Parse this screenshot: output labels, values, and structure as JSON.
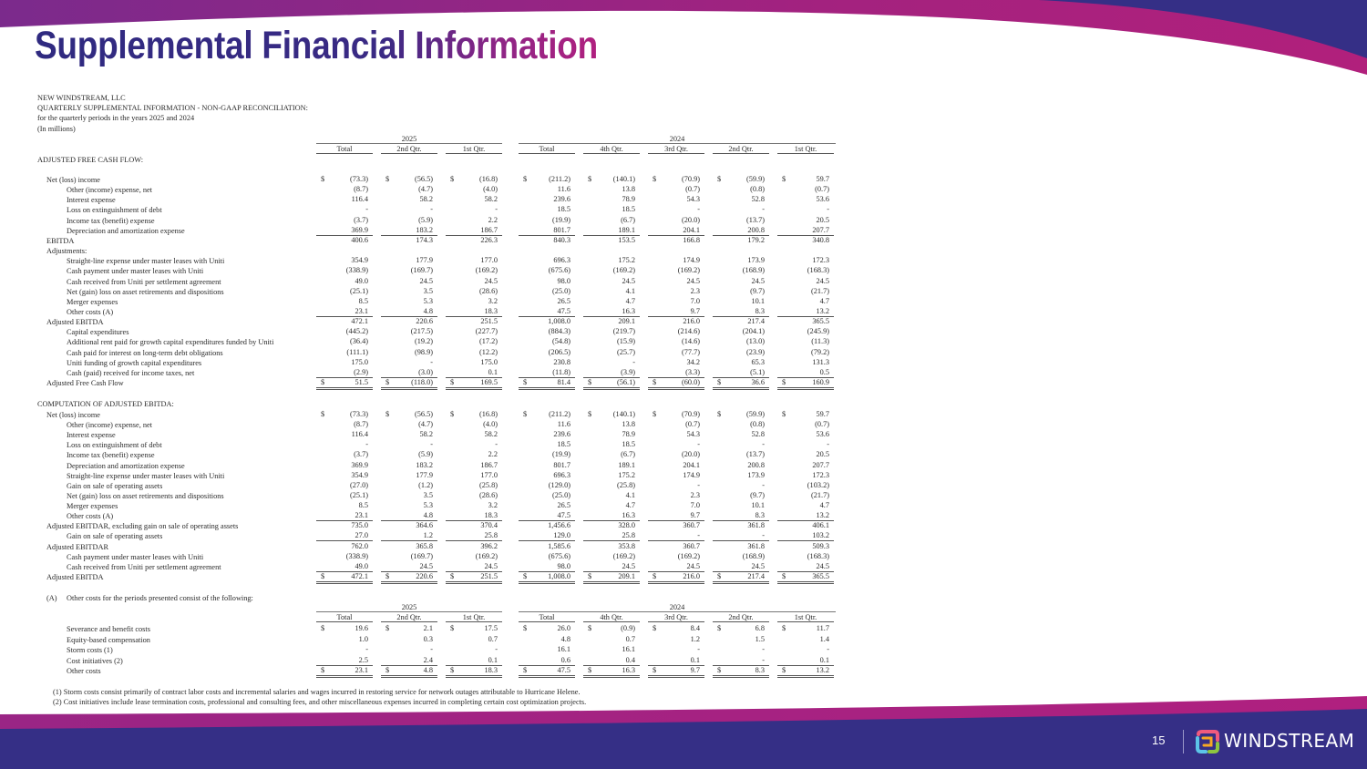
{
  "slide": {
    "title": "Supplemental Financial Information",
    "page_number": "15",
    "brand": "WINDSTREAM",
    "colors": {
      "navy": "#352f86",
      "magenta": "#a8217f",
      "purple": "#7b2a8c"
    }
  },
  "header": {
    "company": "NEW WINDSTREAM, LLC",
    "title": "QUARTERLY SUPPLEMENTAL INFORMATION - NON-GAAP RECONCILIATION:",
    "period": "for the quarterly periods in the years 2025 and 2024",
    "units": "(In millions)"
  },
  "columns": {
    "years": [
      {
        "label": "2025",
        "cols": [
          "Total",
          "2nd Qtr.",
          "1st Qtr."
        ]
      },
      {
        "label": "2024",
        "cols": [
          "Total",
          "4th Qtr.",
          "3rd Qtr.",
          "2nd Qtr.",
          "1st Qtr."
        ]
      }
    ],
    "dollar_sign": "$"
  },
  "sections": [
    {
      "title": "ADJUSTED FREE CASH FLOW:",
      "rows": [
        {
          "label": "Net (loss) income",
          "level": 1,
          "dollar": true,
          "values": [
            "(73.3)",
            "(56.5)",
            "(16.8)",
            "(211.2)",
            "(140.1)",
            "(70.9)",
            "(59.9)",
            "59.7"
          ]
        },
        {
          "label": "Other (income) expense, net",
          "level": 2,
          "values": [
            "(8.7)",
            "(4.7)",
            "(4.0)",
            "11.6",
            "13.8",
            "(0.7)",
            "(0.8)",
            "(0.7)"
          ]
        },
        {
          "label": "Interest expense",
          "level": 2,
          "values": [
            "116.4",
            "58.2",
            "58.2",
            "239.6",
            "78.9",
            "54.3",
            "52.8",
            "53.6"
          ]
        },
        {
          "label": "Loss on extinguishment of debt",
          "level": 2,
          "values": [
            "-",
            "-",
            "-",
            "18.5",
            "18.5",
            "-",
            "-",
            "-"
          ]
        },
        {
          "label": "Income tax (benefit) expense",
          "level": 2,
          "values": [
            "(3.7)",
            "(5.9)",
            "2.2",
            "(19.9)",
            "(6.7)",
            "(20.0)",
            "(13.7)",
            "20.5"
          ]
        },
        {
          "label": "Depreciation and amortization expense",
          "level": 2,
          "rule": "single",
          "values": [
            "369.9",
            "183.2",
            "186.7",
            "801.7",
            "189.1",
            "204.1",
            "200.8",
            "207.7"
          ]
        },
        {
          "label": "EBITDA",
          "level": 1,
          "values": [
            "400.6",
            "174.3",
            "226.3",
            "840.3",
            "153.5",
            "166.8",
            "179.2",
            "340.8"
          ]
        },
        {
          "label": "Adjustments:",
          "level": 1,
          "values": []
        },
        {
          "label": "Straight-line expense under master leases with Uniti",
          "level": 2,
          "values": [
            "354.9",
            "177.9",
            "177.0",
            "696.3",
            "175.2",
            "174.9",
            "173.9",
            "172.3"
          ]
        },
        {
          "label": "Cash payment under master leases with Uniti",
          "level": 2,
          "values": [
            "(338.9)",
            "(169.7)",
            "(169.2)",
            "(675.6)",
            "(169.2)",
            "(169.2)",
            "(168.9)",
            "(168.3)"
          ]
        },
        {
          "label": "Cash received from Uniti per settlement agreement",
          "level": 2,
          "values": [
            "49.0",
            "24.5",
            "24.5",
            "98.0",
            "24.5",
            "24.5",
            "24.5",
            "24.5"
          ]
        },
        {
          "label": "Net (gain) loss on asset retirements and dispositions",
          "level": 2,
          "values": [
            "(25.1)",
            "3.5",
            "(28.6)",
            "(25.0)",
            "4.1",
            "2.3",
            "(9.7)",
            "(21.7)"
          ]
        },
        {
          "label": "Merger expenses",
          "level": 2,
          "values": [
            "8.5",
            "5.3",
            "3.2",
            "26.5",
            "4.7",
            "7.0",
            "10.1",
            "4.7"
          ]
        },
        {
          "label": "Other costs (A)",
          "level": 2,
          "rule": "single",
          "values": [
            "23.1",
            "4.8",
            "18.3",
            "47.5",
            "16.3",
            "9.7",
            "8.3",
            "13.2"
          ]
        },
        {
          "label": "Adjusted EBITDA",
          "level": 1,
          "values": [
            "472.1",
            "220.6",
            "251.5",
            "1,008.0",
            "209.1",
            "216.0",
            "217.4",
            "365.5"
          ]
        },
        {
          "label": "Capital expenditures",
          "level": 2,
          "values": [
            "(445.2)",
            "(217.5)",
            "(227.7)",
            "(884.3)",
            "(219.7)",
            "(214.6)",
            "(204.1)",
            "(245.9)"
          ]
        },
        {
          "label": "Additional rent paid for growth capital expenditures funded by Uniti",
          "level": 2,
          "values": [
            "(36.4)",
            "(19.2)",
            "(17.2)",
            "(54.8)",
            "(15.9)",
            "(14.6)",
            "(13.0)",
            "(11.3)"
          ]
        },
        {
          "label": "Cash paid for interest on long-term debt obligations",
          "level": 2,
          "values": [
            "(111.1)",
            "(98.9)",
            "(12.2)",
            "(206.5)",
            "(25.7)",
            "(77.7)",
            "(23.9)",
            "(79.2)"
          ]
        },
        {
          "label": "Uniti funding of growth capital expenditures",
          "level": 2,
          "values": [
            "175.0",
            "-",
            "175.0",
            "230.8",
            "-",
            "34.2",
            "65.3",
            "131.3"
          ]
        },
        {
          "label": "Cash (paid) received for income taxes, net",
          "level": 2,
          "rule": "single",
          "values": [
            "(2.9)",
            "(3.0)",
            "0.1",
            "(11.8)",
            "(3.9)",
            "(3.3)",
            "(5.1)",
            "0.5"
          ]
        },
        {
          "label": "Adjusted Free Cash Flow",
          "level": 1,
          "dollar": true,
          "rule": "double",
          "values": [
            "51.5",
            "(118.0)",
            "169.5",
            "81.4",
            "(56.1)",
            "(60.0)",
            "36.6",
            "160.9"
          ]
        }
      ]
    },
    {
      "title": "COMPUTATION OF ADJUSTED EBITDA:",
      "rows": [
        {
          "label": "Net (loss) income",
          "level": 1,
          "dollar": true,
          "values": [
            "(73.3)",
            "(56.5)",
            "(16.8)",
            "(211.2)",
            "(140.1)",
            "(70.9)",
            "(59.9)",
            "59.7"
          ]
        },
        {
          "label": "Other (income) expense, net",
          "level": 2,
          "values": [
            "(8.7)",
            "(4.7)",
            "(4.0)",
            "11.6",
            "13.8",
            "(0.7)",
            "(0.8)",
            "(0.7)"
          ]
        },
        {
          "label": "Interest expense",
          "level": 2,
          "values": [
            "116.4",
            "58.2",
            "58.2",
            "239.6",
            "78.9",
            "54.3",
            "52.8",
            "53.6"
          ]
        },
        {
          "label": "Loss on extinguishment of debt",
          "level": 2,
          "values": [
            "-",
            "-",
            "-",
            "18.5",
            "18.5",
            "-",
            "-",
            "-"
          ]
        },
        {
          "label": "Income tax (benefit) expense",
          "level": 2,
          "values": [
            "(3.7)",
            "(5.9)",
            "2.2",
            "(19.9)",
            "(6.7)",
            "(20.0)",
            "(13.7)",
            "20.5"
          ]
        },
        {
          "label": "Depreciation and amortization expense",
          "level": 2,
          "values": [
            "369.9",
            "183.2",
            "186.7",
            "801.7",
            "189.1",
            "204.1",
            "200.8",
            "207.7"
          ]
        },
        {
          "label": "Straight-line expense under master leases with Uniti",
          "level": 2,
          "values": [
            "354.9",
            "177.9",
            "177.0",
            "696.3",
            "175.2",
            "174.9",
            "173.9",
            "172.3"
          ]
        },
        {
          "label": "Gain on sale of operating assets",
          "level": 2,
          "values": [
            "(27.0)",
            "(1.2)",
            "(25.8)",
            "(129.0)",
            "(25.8)",
            "-",
            "-",
            "(103.2)"
          ]
        },
        {
          "label": "Net (gain) loss on asset retirements and dispositions",
          "level": 2,
          "values": [
            "(25.1)",
            "3.5",
            "(28.6)",
            "(25.0)",
            "4.1",
            "2.3",
            "(9.7)",
            "(21.7)"
          ]
        },
        {
          "label": "Merger expenses",
          "level": 2,
          "values": [
            "8.5",
            "5.3",
            "3.2",
            "26.5",
            "4.7",
            "7.0",
            "10.1",
            "4.7"
          ]
        },
        {
          "label": "Other costs (A)",
          "level": 2,
          "rule": "single",
          "values": [
            "23.1",
            "4.8",
            "18.3",
            "47.5",
            "16.3",
            "9.7",
            "8.3",
            "13.2"
          ]
        },
        {
          "label": "Adjusted EBITDAR, excluding gain on sale of operating assets",
          "level": 1,
          "values": [
            "735.0",
            "364.6",
            "370.4",
            "1,456.6",
            "328.0",
            "360.7",
            "361.8",
            "406.1"
          ]
        },
        {
          "label": "Gain on sale of operating assets",
          "level": 2,
          "rule": "single",
          "values": [
            "27.0",
            "1.2",
            "25.8",
            "129.0",
            "25.8",
            "-",
            "-",
            "103.2"
          ]
        },
        {
          "label": "Adjusted EBITDAR",
          "level": 1,
          "values": [
            "762.0",
            "365.8",
            "396.2",
            "1,585.6",
            "353.8",
            "360.7",
            "361.8",
            "509.3"
          ]
        },
        {
          "label": "Cash payment under master leases with Uniti",
          "level": 2,
          "values": [
            "(338.9)",
            "(169.7)",
            "(169.2)",
            "(675.6)",
            "(169.2)",
            "(169.2)",
            "(168.9)",
            "(168.3)"
          ]
        },
        {
          "label": "Cash received from Uniti per settlement agreement",
          "level": 2,
          "rule": "single",
          "values": [
            "49.0",
            "24.5",
            "24.5",
            "98.0",
            "24.5",
            "24.5",
            "24.5",
            "24.5"
          ]
        },
        {
          "label": "Adjusted EBITDA",
          "level": 1,
          "dollar": true,
          "rule": "double",
          "values": [
            "472.1",
            "220.6",
            "251.5",
            "1,008.0",
            "209.1",
            "216.0",
            "217.4",
            "365.5"
          ]
        }
      ]
    }
  ],
  "other_costs": {
    "marker": "(A)",
    "title": "Other costs for the periods presented consist of the following:",
    "rows": [
      {
        "label": "Severance and benefit costs",
        "level": 2,
        "dollar": true,
        "values": [
          "19.6",
          "2.1",
          "17.5",
          "26.0",
          "(0.9)",
          "8.4",
          "6.8",
          "11.7"
        ]
      },
      {
        "label": "Equity-based compensation",
        "level": 2,
        "values": [
          "1.0",
          "0.3",
          "0.7",
          "4.8",
          "0.7",
          "1.2",
          "1.5",
          "1.4"
        ]
      },
      {
        "label": "Storm costs (1)",
        "level": 2,
        "values": [
          "-",
          "-",
          "-",
          "16.1",
          "16.1",
          "-",
          "-",
          "-"
        ]
      },
      {
        "label": "Cost initiatives (2)",
        "level": 2,
        "rule": "single",
        "values": [
          "2.5",
          "2.4",
          "0.1",
          "0.6",
          "0.4",
          "0.1",
          "-",
          "0.1"
        ]
      },
      {
        "label": "Other costs",
        "level": 2,
        "dollar": true,
        "rule": "double",
        "values": [
          "23.1",
          "4.8",
          "18.3",
          "47.5",
          "16.3",
          "9.7",
          "8.3",
          "13.2"
        ]
      }
    ]
  },
  "footnotes": [
    "(1) Storm costs consist primarily of contract labor costs and incremental salaries and wages incurred in restoring service for network outages attributable to Hurricane Helene.",
    "(2) Cost initiatives include lease termination costs, professional and consulting fees, and other miscellaneous expenses incurred in completing certain cost optimization projects."
  ]
}
